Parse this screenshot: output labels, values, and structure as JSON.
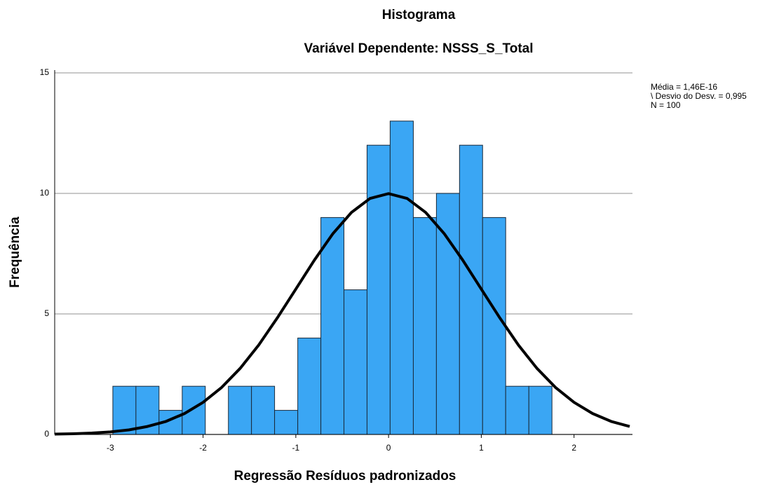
{
  "chart_data": {
    "type": "histogram",
    "title": "Histograma",
    "subtitle": "Variável Dependente: NSSS_S_Total",
    "x_label": "Regressão Resíduos padronizados",
    "y_label": "Frequência",
    "stats": [
      "Média = 1,46E-16",
      "\\ Desvio do Desv. = 0,995",
      "N = 100"
    ],
    "bins": [
      -2.973,
      -2.724,
      -2.475,
      -2.225,
      -1.976,
      -1.727,
      -1.478,
      -1.229,
      -0.979,
      -0.73,
      -0.481,
      -0.232,
      0.017,
      0.267,
      0.516,
      0.765,
      1.014,
      1.263,
      1.513,
      1.762
    ],
    "values": [
      2,
      2,
      1,
      2,
      0,
      2,
      2,
      1,
      4,
      9,
      6,
      12,
      13,
      9,
      10,
      12,
      9,
      2,
      2
    ],
    "color": "#3aa6f4",
    "curve": {
      "x": [
        -3.6,
        -3.4,
        -3.2,
        -3.0,
        -2.8,
        -2.6,
        -2.4,
        -2.2,
        -2.0,
        -1.8,
        -1.6,
        -1.4,
        -1.2,
        -1.0,
        -0.8,
        -0.6,
        -0.4,
        -0.2,
        0,
        0.2,
        0.4,
        0.6,
        0.8,
        1.0,
        1.2,
        1.4,
        1.6,
        1.8,
        2.0,
        2.2,
        2.4,
        2.6
      ],
      "y": [
        0.014,
        0.029,
        0.057,
        0.106,
        0.19,
        0.33,
        0.54,
        0.87,
        1.33,
        1.95,
        2.74,
        3.71,
        4.83,
        6.03,
        7.23,
        8.33,
        9.21,
        9.79,
        9.99,
        9.79,
        9.21,
        8.33,
        7.23,
        6.03,
        4.83,
        3.71,
        2.74,
        1.95,
        1.33,
        0.87,
        0.54,
        0.33
      ],
      "color": "#000000"
    },
    "xlim": [
      -3.6,
      2.63
    ],
    "ylim": [
      0,
      15
    ],
    "xticks": [
      -3,
      -2,
      -1,
      0,
      1,
      2
    ],
    "yticks": [
      0,
      5,
      10,
      15
    ],
    "grid": true
  }
}
